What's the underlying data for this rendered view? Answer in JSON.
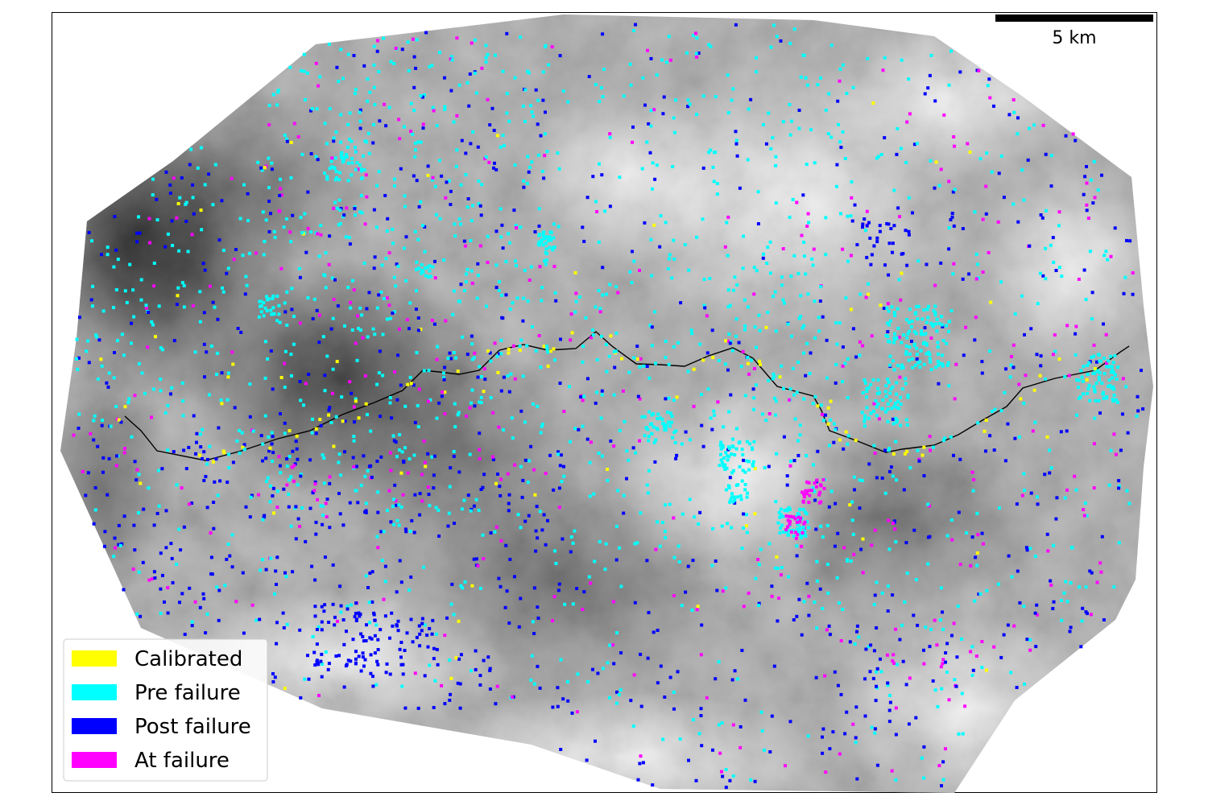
{
  "scale_bar": {
    "label": "5 km"
  },
  "legend": {
    "placement": "bottom-left",
    "items": [
      {
        "key": "calibrated",
        "label": "Calibrated",
        "color": "#ffff00"
      },
      {
        "key": "pre",
        "label": "Pre failure",
        "color": "#00ffff"
      },
      {
        "key": "post",
        "label": "Post failure",
        "color": "#0000ff"
      },
      {
        "key": "at",
        "label": "At failure",
        "color": "#ff00ff"
      }
    ]
  },
  "colors": {
    "road_line": "#000000",
    "hillshade_dark": "#000000",
    "hillshade_light": "#ffffff",
    "background": "#ffffff"
  }
}
